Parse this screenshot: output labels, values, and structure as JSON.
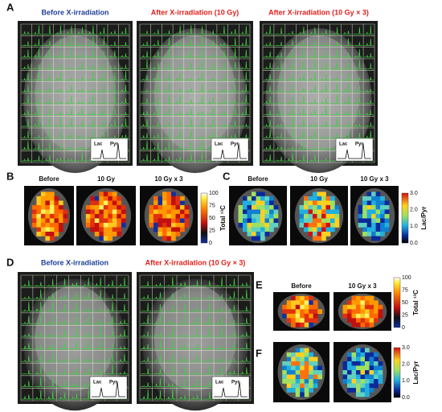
{
  "panels": {
    "A": {
      "label": "A",
      "titles": [
        "Before X-irradiation",
        "After X-irradiation (10 Gy)",
        "After X-irradiation (10 Gy × 3)"
      ],
      "inset": {
        "lac": "Lac",
        "pyr": "Pyr"
      }
    },
    "B": {
      "label": "B",
      "titles": [
        "Before",
        "10 Gy",
        "10 Gy x 3"
      ],
      "colorbar": {
        "ticks": [
          "100",
          "75",
          "50",
          "25",
          "0"
        ],
        "label": "Total ¹³C"
      }
    },
    "C": {
      "label": "C",
      "titles": [
        "Before",
        "10 Gy",
        "10 Gy x 3"
      ],
      "colorbar": {
        "ticks": [
          "3.0",
          "2.0",
          "1.0",
          "0.0"
        ],
        "label": "Lac/Pyr"
      }
    },
    "D": {
      "label": "D",
      "titles": [
        "Before X-irradiation",
        "After X-irradiation (10 Gy × 3)"
      ],
      "inset": {
        "lac": "Lac",
        "pyr": "Pyr"
      }
    },
    "E": {
      "label": "E",
      "titles": [
        "Before",
        "10 Gy x 3"
      ],
      "colorbar": {
        "ticks": [
          "100",
          "75",
          "50",
          "25",
          "0"
        ],
        "label": "Total ¹³C"
      }
    },
    "F": {
      "label": "F",
      "titles": [
        "Before",
        "10 Gy x 3"
      ],
      "colorbar": {
        "ticks": [
          "3.0",
          "2.0",
          "1.0",
          "0.0"
        ],
        "label": "Lac/Pyr"
      }
    }
  }
}
